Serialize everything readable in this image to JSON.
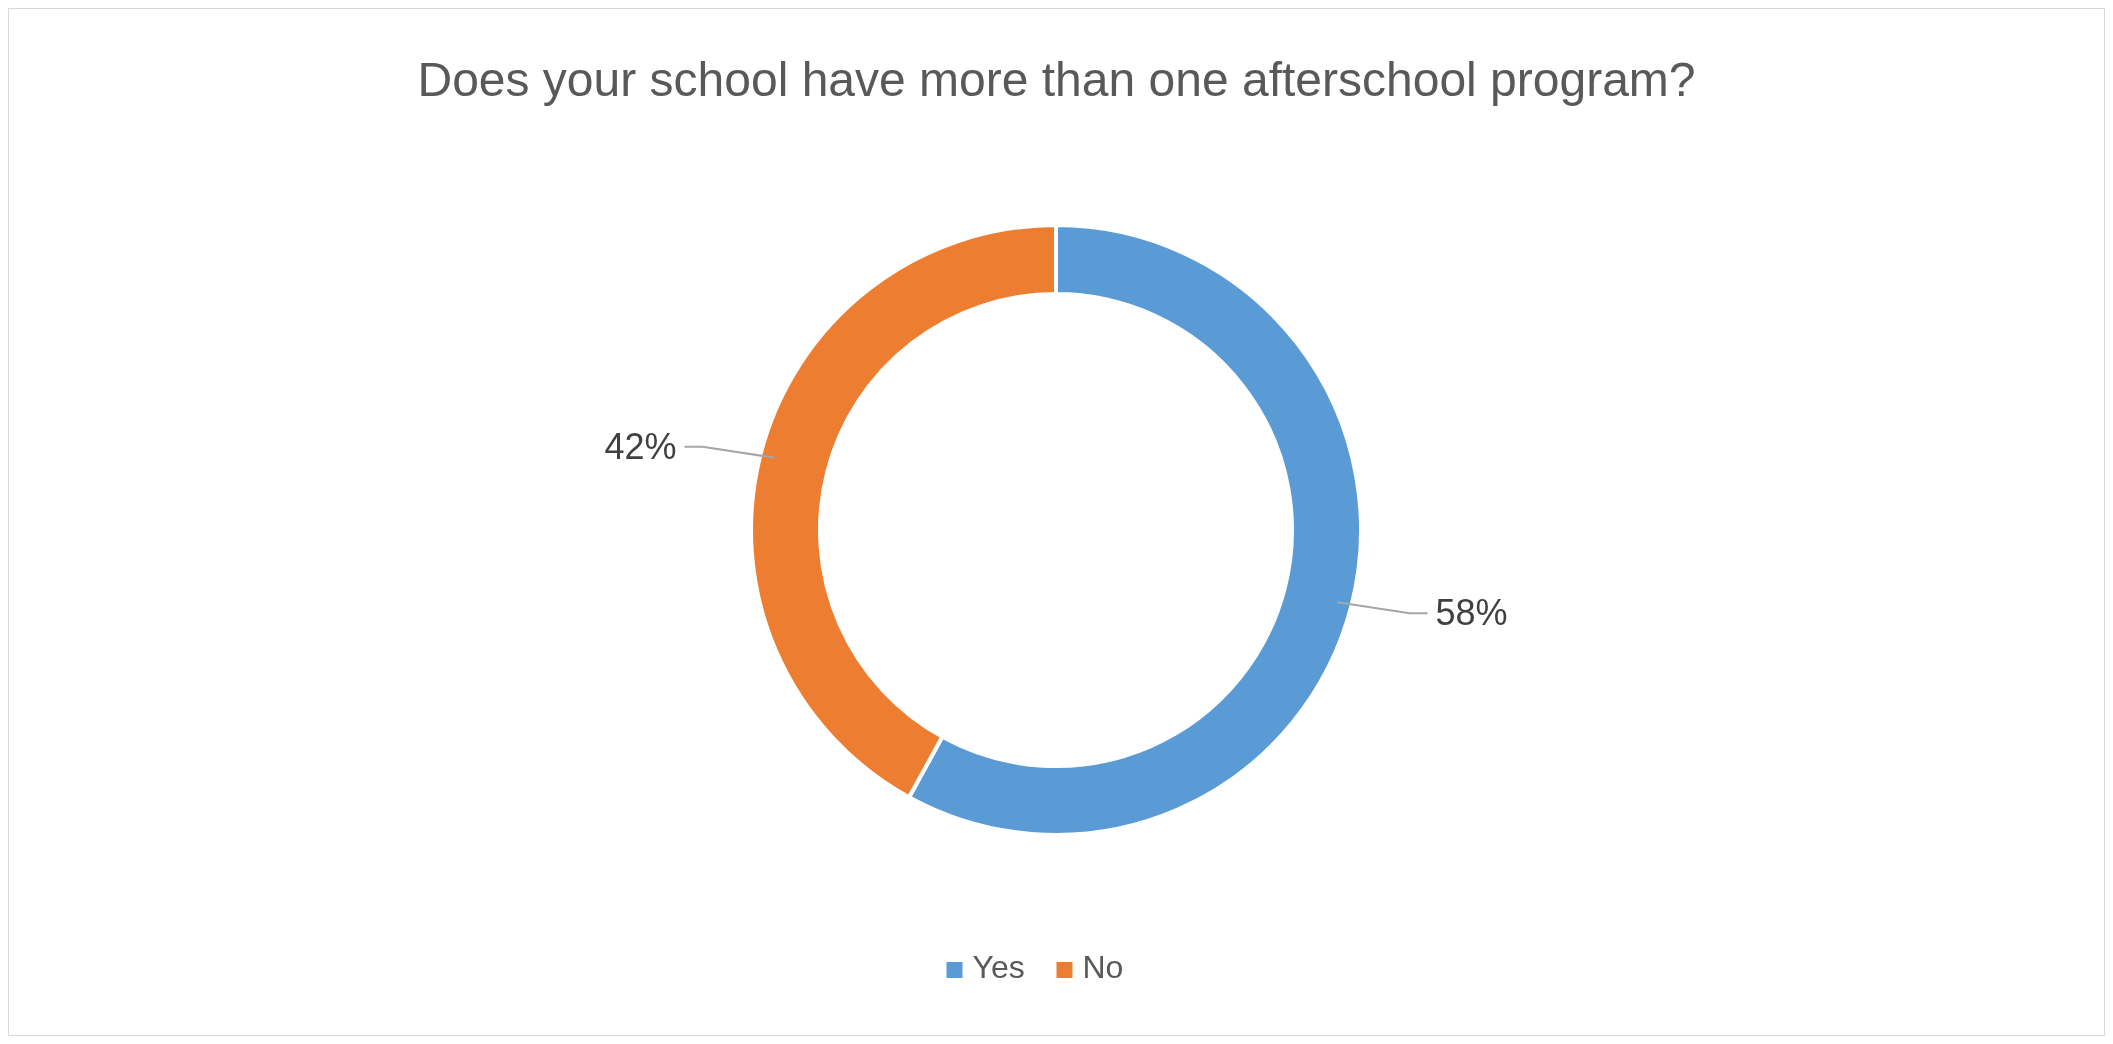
{
  "chart_data": {
    "type": "donut",
    "title": "Does your school have more than one afterschool program?",
    "categories": [
      "Yes",
      "No"
    ],
    "values": [
      58,
      42
    ],
    "colors": [
      "#5b9bd5",
      "#ed7d31"
    ],
    "value_labels": [
      "58%",
      "42%"
    ],
    "legend": "bottom"
  }
}
